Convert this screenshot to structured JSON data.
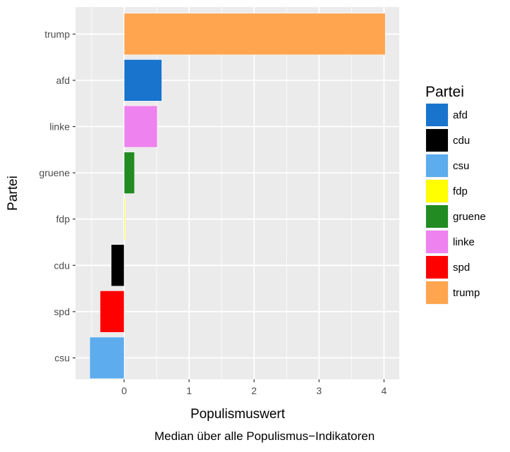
{
  "chart_data": {
    "type": "bar",
    "orientation": "horizontal",
    "categories": [
      "trump",
      "afd",
      "linke",
      "gruene",
      "fdp",
      "cdu",
      "spd",
      "csu"
    ],
    "values": [
      4.02,
      0.58,
      0.51,
      0.16,
      0.01,
      -0.2,
      -0.37,
      -0.53
    ],
    "colors": {
      "afd": "#1874CD",
      "cdu": "#000000",
      "csu": "#5CACEE",
      "fdp": "#FFFF00",
      "gruene": "#228B22",
      "linke": "#EE82EE",
      "spd": "#FF0000",
      "trump": "#FFA54F"
    },
    "xlabel": "Populismuswert",
    "ylabel": "Partei",
    "caption": "Median über alle Populismus−Indikatoren",
    "xlim": [
      -0.75,
      4.25
    ],
    "xticks": [
      "0",
      "1",
      "2",
      "3",
      "4"
    ],
    "grid": true,
    "background": "#EBEBEB",
    "legend": {
      "title": "Partei",
      "position": "right",
      "items": [
        "afd",
        "cdu",
        "csu",
        "fdp",
        "gruene",
        "linke",
        "spd",
        "trump"
      ]
    }
  }
}
